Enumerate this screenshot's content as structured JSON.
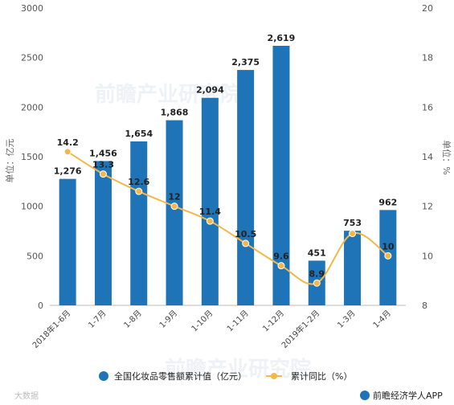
{
  "chart_data": {
    "type": "bar",
    "categories": [
      "2018年1-6月",
      "1-7月",
      "1-8月",
      "1-9月",
      "1-10月",
      "1-11月",
      "1-12月",
      "2019年1-2月",
      "1-3月",
      "1-4月"
    ],
    "series": [
      {
        "name": "全国化妆品零售额累计值（亿元）",
        "type": "bar",
        "axis": "left",
        "values": [
          1276,
          1456,
          1654,
          1868,
          2094,
          2375,
          2619,
          451,
          753,
          962
        ],
        "labels": [
          "1,276",
          "1,456",
          "1,654",
          "1,868",
          "2,094",
          "2,375",
          "2,619",
          "451",
          "753",
          "962"
        ]
      },
      {
        "name": "累计同比（%）",
        "type": "line",
        "axis": "right",
        "values": [
          14.2,
          13.3,
          12.6,
          12,
          11.4,
          10.5,
          9.6,
          8.9,
          10.9,
          10
        ],
        "labels": [
          "14.2",
          "13.3",
          "12.6",
          "12",
          "11.4",
          "10.5",
          "9.6",
          "8.9",
          "",
          "10"
        ]
      }
    ],
    "y_left": {
      "label": "单位：亿元",
      "range": [
        0,
        3000
      ],
      "ticks": [
        "0",
        "500",
        "1000",
        "1500",
        "2000",
        "2500",
        "3000"
      ]
    },
    "y_right": {
      "label": "单位：%",
      "range": [
        8,
        20
      ],
      "ticks": [
        "8",
        "10",
        "12",
        "14",
        "16",
        "18",
        "20"
      ]
    },
    "grid": false,
    "legend_position": "bottom",
    "colors": {
      "bar": "#1f73b7",
      "line": "#f2b84b",
      "marker": "#f2b84b"
    }
  },
  "watermark": {
    "text": "前瞻产业研究院"
  },
  "footer": {
    "left": "大数据",
    "right": "前瞻经济学人APP"
  }
}
